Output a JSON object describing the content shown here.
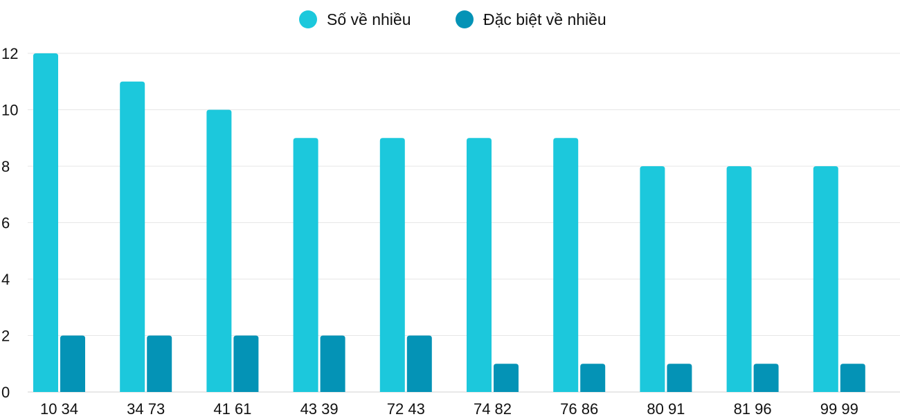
{
  "chart_data": {
    "type": "bar",
    "title": "",
    "xlabel": "",
    "ylabel": "",
    "categories": [
      "10 34",
      "34 73",
      "41 61",
      "43 39",
      "72 43",
      "74 82",
      "76 86",
      "80 91",
      "81 96",
      "99 99"
    ],
    "series": [
      {
        "name": "Số về nhiều",
        "color": "#1cc8dc",
        "values": [
          12,
          11,
          10,
          9,
          9,
          9,
          9,
          8,
          8,
          8
        ]
      },
      {
        "name": "Đặc biệt về nhiều",
        "color": "#0493b6",
        "values": [
          2,
          2,
          2,
          2,
          2,
          1,
          1,
          1,
          1,
          1
        ]
      }
    ],
    "ylim": [
      0,
      12
    ],
    "yticks": [
      "0",
      "2",
      "4",
      "6",
      "8",
      "10",
      "12"
    ],
    "grid": true,
    "legend": "top-center"
  }
}
